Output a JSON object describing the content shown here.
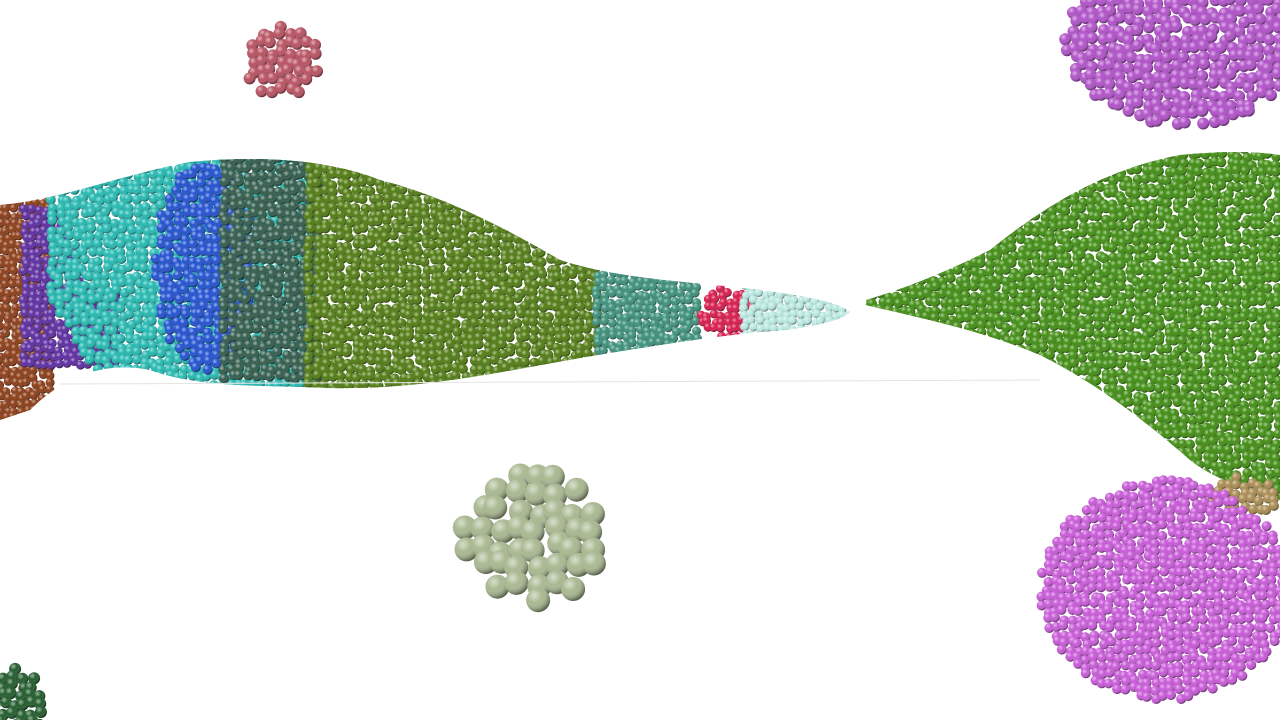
{
  "scene": {
    "background": "#ffffff",
    "description_free": true,
    "clusters": [
      {
        "name": "brown-cluster",
        "color": "#8a3a14"
      },
      {
        "name": "purple-cluster",
        "color": "#5a2aa0"
      },
      {
        "name": "cyan-cluster",
        "color": "#22b8b0"
      },
      {
        "name": "blue-cluster",
        "color": "#1f4fd0"
      },
      {
        "name": "dark-teal-cluster",
        "color": "#2f5a4a"
      },
      {
        "name": "olive-cluster",
        "color": "#4f7a10"
      },
      {
        "name": "teal-cluster",
        "color": "#3a8f7a"
      },
      {
        "name": "crimson-cluster",
        "color": "#d8184a"
      },
      {
        "name": "pale-cyan-cluster",
        "color": "#b8e8e0"
      },
      {
        "name": "bright-green-cluster",
        "color": "#3f8c10"
      },
      {
        "name": "magenta-top-cluster",
        "color": "#b050c8"
      },
      {
        "name": "magenta-bottom-cluster",
        "color": "#c858d8"
      },
      {
        "name": "tan-cluster",
        "color": "#a88a50"
      },
      {
        "name": "rose-cluster",
        "color": "#b85060"
      },
      {
        "name": "sage-cluster",
        "color": "#a8b890"
      },
      {
        "name": "dark-green-cluster",
        "color": "#1f5a2a"
      }
    ]
  }
}
